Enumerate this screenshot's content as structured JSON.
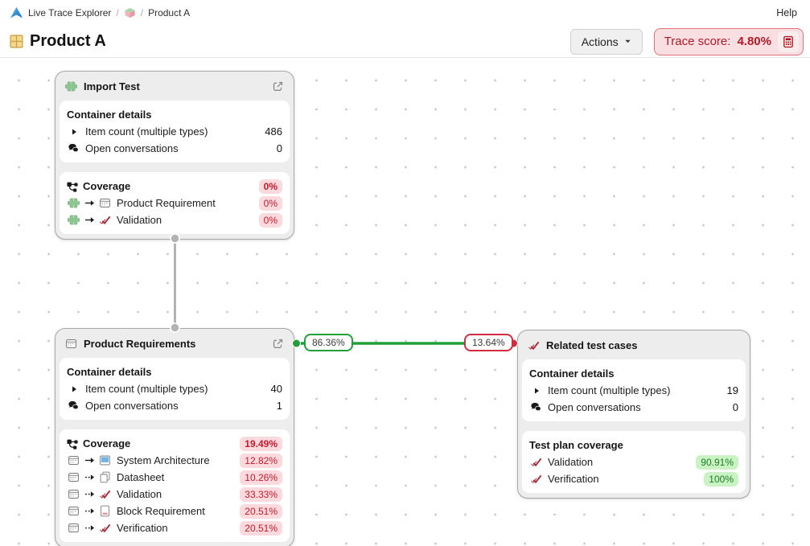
{
  "breadcrumb": {
    "app_name": "Live Trace Explorer",
    "separator": "/",
    "context_icon": "set-icon",
    "context": "Product A",
    "help": "Help"
  },
  "header": {
    "title_icon": "table-icon",
    "title": "Product A",
    "actions": "Actions",
    "trace_score_label": "Trace score:",
    "trace_score_value": "4.80%",
    "trace_score_icon": "calculator-icon"
  },
  "edges": {
    "vertical": {
      "from": "import-test",
      "to": "product-requirements"
    },
    "horizontal": {
      "from": "product-requirements",
      "to": "related-test-cases",
      "green_badge": "86.36%",
      "red_badge": "13.64%"
    }
  },
  "cards": [
    {
      "id": "import-test",
      "icon": "puzzle",
      "title": "Import Test",
      "external_link": true,
      "sections": [
        {
          "name": "container-details",
          "heading": "Container details",
          "rows": [
            {
              "icons": [
                "caret"
              ],
              "label": "Item count (multiple types)",
              "value": "486"
            },
            {
              "icons": [
                "chat"
              ],
              "label": "Open conversations",
              "value": "0"
            }
          ]
        },
        {
          "name": "coverage",
          "heading": "Coverage",
          "heading_icon": "trace",
          "heading_badge": {
            "text": "0%",
            "tone": "red"
          },
          "rows": [
            {
              "icons": [
                "puzzle",
                "arrow-solid",
                "form"
              ],
              "label": "Product Requirement",
              "badge": {
                "text": "0%",
                "tone": "red"
              }
            },
            {
              "icons": [
                "puzzle",
                "arrow-solid",
                "check"
              ],
              "label": "Validation",
              "badge": {
                "text": "0%",
                "tone": "red"
              }
            }
          ]
        }
      ]
    },
    {
      "id": "product-requirements",
      "icon": "form",
      "title": "Product Requirements",
      "external_link": true,
      "sections": [
        {
          "name": "container-details",
          "heading": "Container details",
          "rows": [
            {
              "icons": [
                "caret"
              ],
              "label": "Item count (multiple types)",
              "value": "40"
            },
            {
              "icons": [
                "chat"
              ],
              "label": "Open conversations",
              "value": "1"
            }
          ]
        },
        {
          "name": "coverage",
          "heading": "Coverage",
          "heading_icon": "trace",
          "heading_badge": {
            "text": "19.49%",
            "tone": "red"
          },
          "rows": [
            {
              "icons": [
                "form",
                "arrow-solid",
                "sysarch"
              ],
              "label": "System Architecture",
              "badge": {
                "text": "12.82%",
                "tone": "red"
              }
            },
            {
              "icons": [
                "form",
                "arrow-dashed",
                "datasheet"
              ],
              "label": "Datasheet",
              "badge": {
                "text": "10.26%",
                "tone": "red"
              }
            },
            {
              "icons": [
                "form",
                "arrow-dashed",
                "check"
              ],
              "label": "Validation",
              "badge": {
                "text": "33.33%",
                "tone": "red"
              }
            },
            {
              "icons": [
                "form",
                "arrow-dashed",
                "blockreq"
              ],
              "label": "Block Requirement",
              "badge": {
                "text": "20.51%",
                "tone": "red"
              }
            },
            {
              "icons": [
                "form",
                "arrow-dashed",
                "check"
              ],
              "label": "Verification",
              "badge": {
                "text": "20.51%",
                "tone": "red"
              }
            }
          ]
        }
      ]
    },
    {
      "id": "related-test-cases",
      "icon": "check",
      "title": "Related test cases",
      "external_link": false,
      "sections": [
        {
          "name": "container-details",
          "heading": "Container details",
          "rows": [
            {
              "icons": [
                "caret"
              ],
              "label": "Item count (multiple types)",
              "value": "19"
            },
            {
              "icons": [
                "chat"
              ],
              "label": "Open conversations",
              "value": "0"
            }
          ]
        },
        {
          "name": "test-plan-coverage",
          "heading": "Test plan coverage",
          "rows": [
            {
              "icons": [
                "check"
              ],
              "label": "Validation",
              "badge": {
                "text": "90.91%",
                "tone": "green"
              }
            },
            {
              "icons": [
                "check"
              ],
              "label": "Verification",
              "badge": {
                "text": "100%",
                "tone": "green"
              }
            }
          ]
        }
      ]
    }
  ],
  "colors": {
    "badge_red_bg": "#fbd9dd",
    "badge_red_text": "#c41a2c",
    "badge_green_bg": "#c9f3c3",
    "badge_green_text": "#1e7e27",
    "edge_green": "#21a038",
    "edge_red": "#d22d3c",
    "edge_gray": "#b3b3b3",
    "trace_bg": "#fadfe2",
    "trace_border": "#e4717d",
    "trace_text": "#b01a28"
  }
}
